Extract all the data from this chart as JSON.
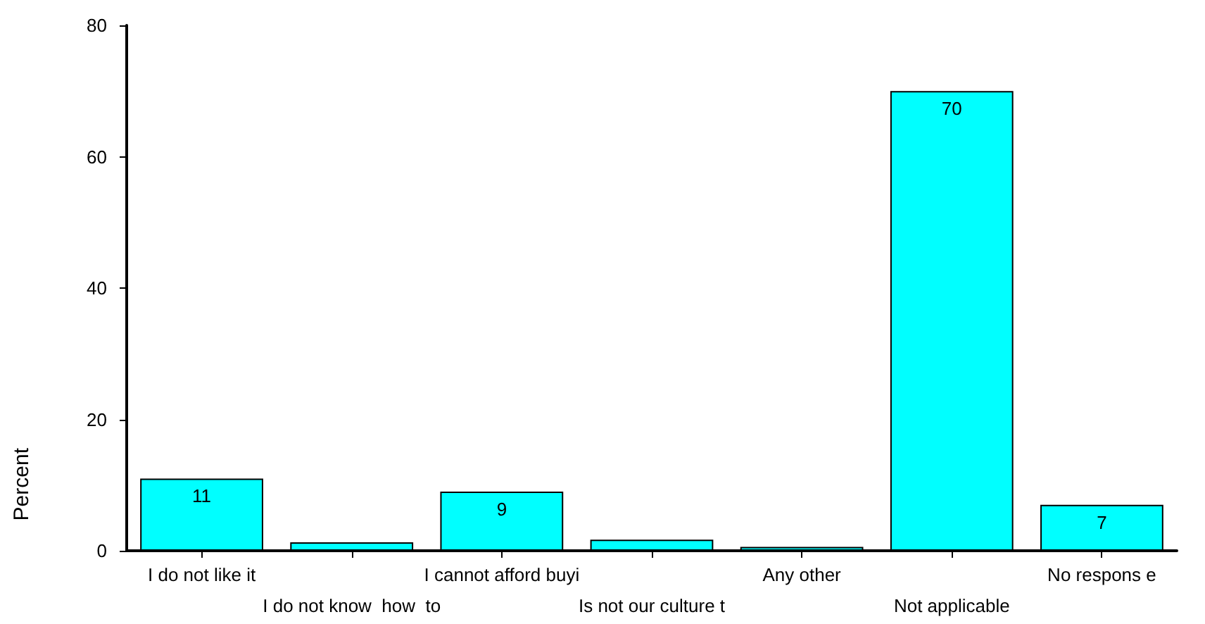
{
  "chart_data": {
    "type": "bar",
    "ylabel": "Percent",
    "categories": [
      "I do not like it",
      "I do not know  how  to",
      "I cannot afford buyi",
      "Is not our culture t",
      "Any other",
      "Not applicable",
      "No respons e"
    ],
    "values": [
      11,
      1.3,
      9,
      1.7,
      0.6,
      70,
      7
    ],
    "value_labels": [
      "11",
      null,
      "9",
      null,
      null,
      "70",
      "7"
    ],
    "color": "#00ffff",
    "ylim": [
      0,
      80
    ],
    "yticks": [
      0,
      20,
      40,
      60,
      80
    ],
    "grid": false
  }
}
